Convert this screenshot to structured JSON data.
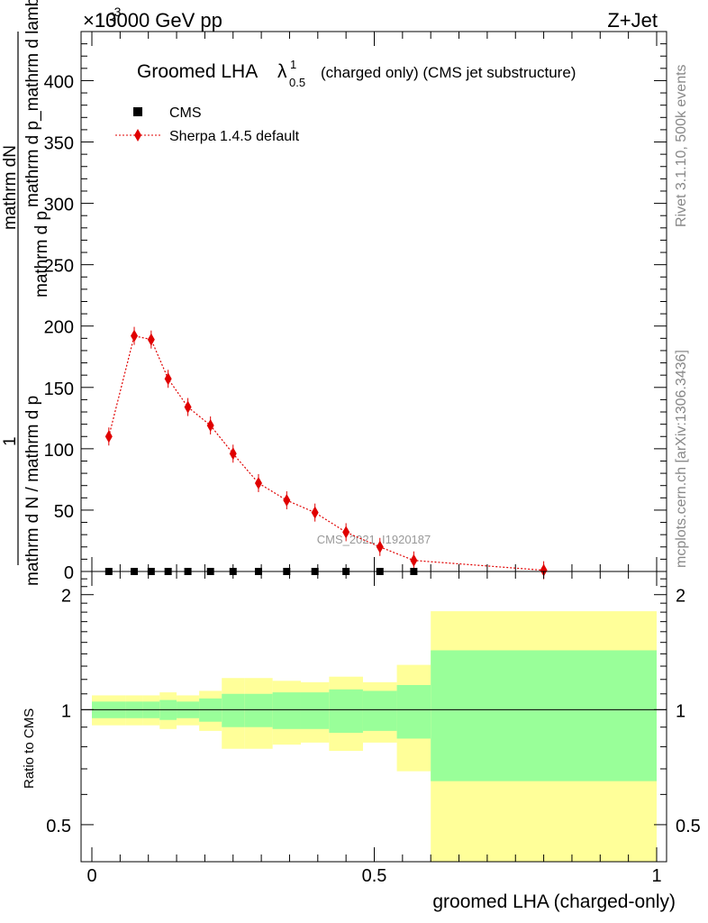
{
  "header": {
    "energy_label": "13000 GeV pp",
    "process_label": "Z+Jet",
    "exponent_label": "×10",
    "exponent_power": "-3"
  },
  "side_labels": {
    "rivet": "Rivet 3.1.10,  500k events",
    "mcplots": "mcplots.cern.ch [arXiv:1306.3436]"
  },
  "watermark": "CMS_2021_I1920187",
  "chart_data": [
    {
      "type": "scatter",
      "title_main": "Groomed LHA",
      "title_symbol": "λ",
      "title_sup": "1",
      "title_sub": "0.5",
      "title_rest": "(charged only) (CMS jet substructure)",
      "ylabel_numerator": "1",
      "ylabel_numerator_line2": "mathrm dN",
      "ylabel_denominator": "mathrm d N / mathrm d p",
      "ylabel_denominator_line2": "mathrm d p",
      "ylabel_tail": "mathrm d p_mathrm d lambda",
      "ylim": [
        0,
        440
      ],
      "yticks": [
        0,
        50,
        100,
        150,
        200,
        250,
        300,
        350,
        400
      ],
      "xlim": [
        0,
        1
      ],
      "legend": [
        {
          "name": "CMS",
          "marker": "square",
          "color": "#000000"
        },
        {
          "name": "Sherpa 1.4.5 default",
          "marker": "diamond",
          "color": "#e00000"
        }
      ],
      "series": [
        {
          "name": "CMS",
          "x": [
            0.03,
            0.075,
            0.105,
            0.135,
            0.17,
            0.21,
            0.25,
            0.295,
            0.345,
            0.395,
            0.45,
            0.51,
            0.57
          ],
          "values": [
            0,
            0,
            0,
            0,
            0,
            0,
            0,
            0,
            0,
            0,
            0,
            0,
            0
          ]
        },
        {
          "name": "Sherpa 1.4.5 default",
          "x": [
            0.03,
            0.075,
            0.105,
            0.135,
            0.17,
            0.21,
            0.25,
            0.295,
            0.345,
            0.395,
            0.45,
            0.51,
            0.57,
            0.8
          ],
          "values": [
            110,
            192,
            189,
            157,
            134,
            119,
            96,
            72,
            58,
            48,
            32,
            20,
            9,
            1
          ]
        }
      ]
    },
    {
      "type": "area",
      "ylabel": "Ratio to CMS",
      "xlabel": "groomed LHA (charged-only)",
      "ylim": [
        0.4,
        2.3
      ],
      "xticks": [
        0,
        0.5,
        1
      ],
      "xtick_labels": [
        "0",
        "0.5",
        "1"
      ],
      "yticks": [
        0.5,
        1,
        2
      ],
      "ytick_labels": [
        "0.5",
        "1",
        "2"
      ],
      "bin_edges": [
        0,
        0.06,
        0.09,
        0.12,
        0.15,
        0.19,
        0.23,
        0.27,
        0.32,
        0.37,
        0.42,
        0.48,
        0.54,
        0.6,
        1.0
      ],
      "inner_band_low": [
        0.95,
        0.95,
        0.95,
        0.94,
        0.95,
        0.93,
        0.9,
        0.9,
        0.89,
        0.89,
        0.87,
        0.88,
        0.84,
        0.65
      ],
      "inner_band_high": [
        1.05,
        1.05,
        1.05,
        1.06,
        1.05,
        1.07,
        1.1,
        1.1,
        1.11,
        1.11,
        1.13,
        1.12,
        1.16,
        1.43
      ],
      "outer_band_low": [
        0.91,
        0.91,
        0.91,
        0.89,
        0.91,
        0.88,
        0.79,
        0.79,
        0.81,
        0.82,
        0.78,
        0.82,
        0.69,
        0.4
      ],
      "outer_band_high": [
        1.09,
        1.09,
        1.09,
        1.11,
        1.09,
        1.12,
        1.21,
        1.21,
        1.19,
        1.18,
        1.22,
        1.18,
        1.31,
        1.81
      ],
      "inner_color": "#99ff99",
      "outer_color": "#ffff99",
      "reference_value": 1
    }
  ]
}
